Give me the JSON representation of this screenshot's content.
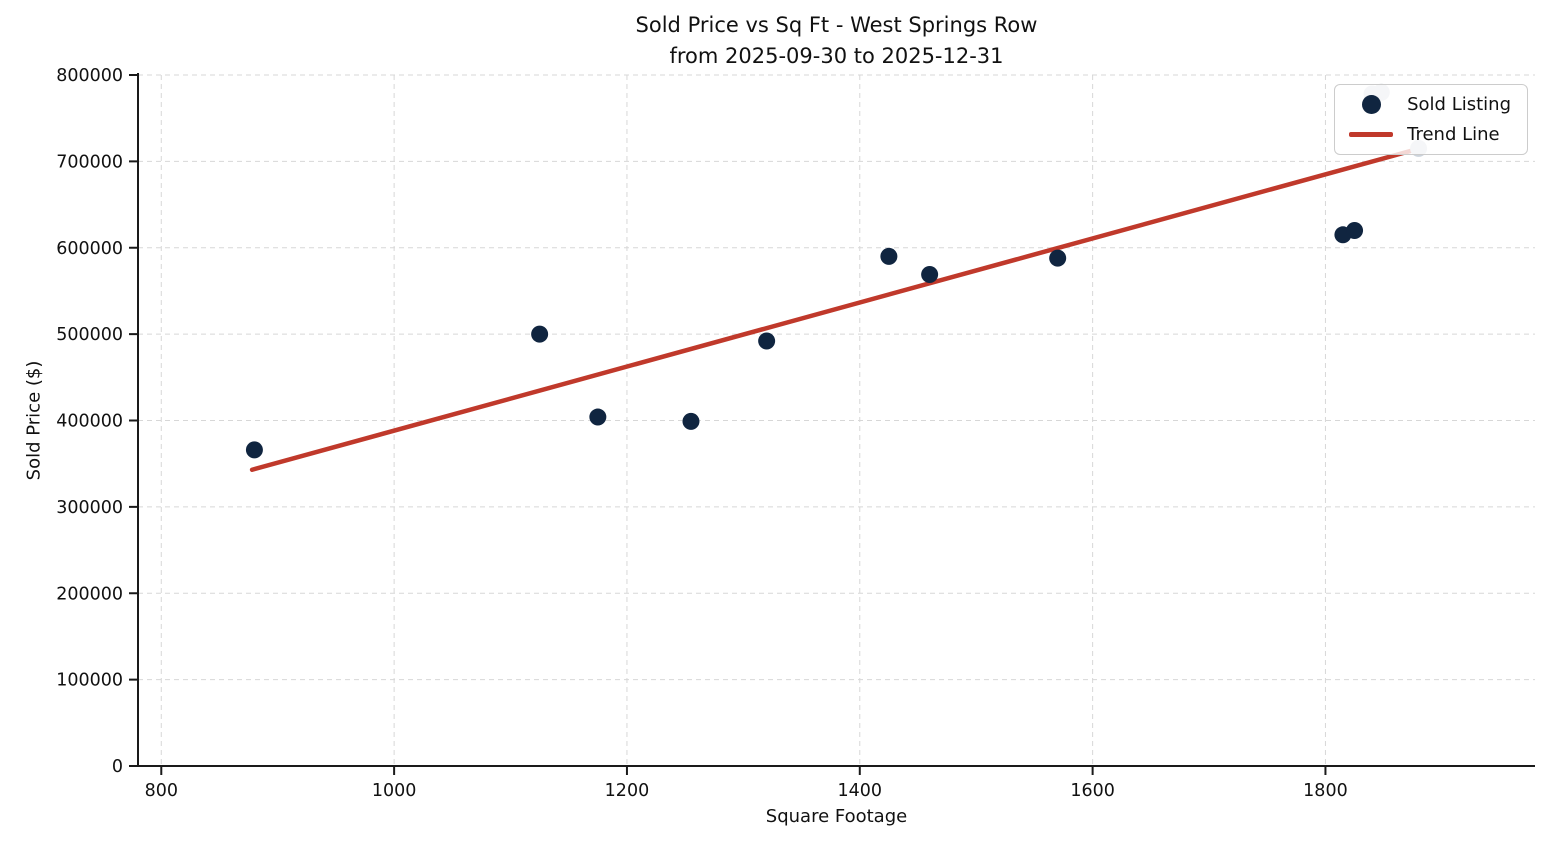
{
  "chart_data": {
    "type": "scatter",
    "title": "Sold Price vs Sq Ft - West Springs Row",
    "subtitle": "from 2025-09-30 to 2025-12-31",
    "xlabel": "Square Footage",
    "ylabel": "Sold Price ($)",
    "xlim": [
      780,
      1980
    ],
    "ylim": [
      0,
      800000
    ],
    "x_ticks": [
      800,
      1000,
      1200,
      1400,
      1600,
      1800
    ],
    "y_ticks": [
      0,
      100000,
      200000,
      300000,
      400000,
      500000,
      600000,
      700000,
      800000
    ],
    "grid": "dashed",
    "legend_position": "upper right",
    "colors": {
      "sold_point": "#102540",
      "muted_point": "#ccd3db",
      "trend_line": "#c0392b",
      "gridline": "#d7d7d7",
      "spine": "#1a1a1a",
      "text": "#111111"
    },
    "legend": [
      {
        "label": "Sold Listing",
        "marker": "dot",
        "color": "#102540"
      },
      {
        "label": "Trend Line",
        "marker": "line",
        "color": "#c0392b"
      }
    ],
    "series": [
      {
        "name": "Sold Listing",
        "type": "scatter",
        "color": "#102540",
        "in_legend": true,
        "points": [
          [
            880,
            366000
          ],
          [
            1125,
            500000
          ],
          [
            1175,
            404000
          ],
          [
            1255,
            399000
          ],
          [
            1320,
            492000
          ],
          [
            1425,
            590000
          ],
          [
            1460,
            569000
          ],
          [
            1570,
            588000
          ],
          [
            1815,
            615000
          ],
          [
            1825,
            620000
          ]
        ]
      },
      {
        "name": "Sold Listing (light gray)",
        "type": "scatter",
        "color": "#ccd3db",
        "in_legend": false,
        "points": [
          [
            1840,
            778000
          ],
          [
            1848,
            780000
          ],
          [
            1880,
            715000
          ]
        ]
      },
      {
        "name": "Trend Line",
        "type": "line",
        "color": "#c0392b",
        "in_legend": true,
        "points": [
          [
            878,
            343000
          ],
          [
            1881,
            715000
          ]
        ]
      }
    ]
  }
}
